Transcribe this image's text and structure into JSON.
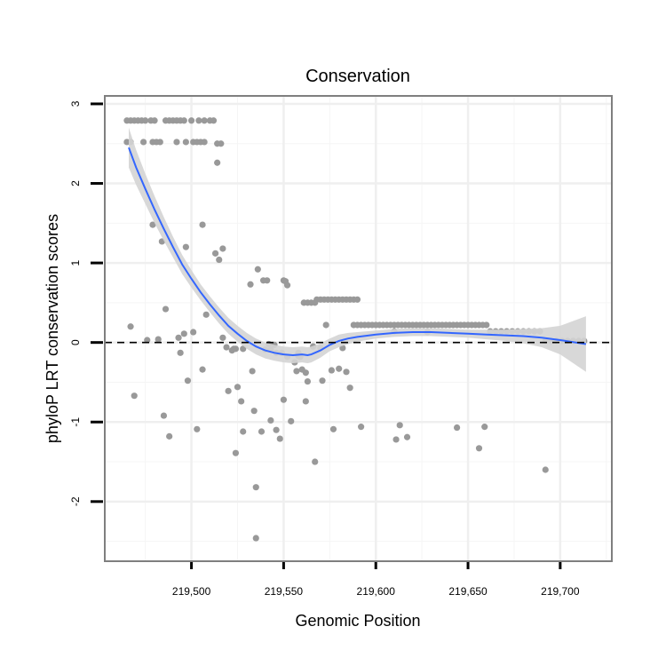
{
  "chart_data": {
    "type": "scatter",
    "title": "Conservation",
    "xlabel": "Genomic Position",
    "ylabel": "phyloP LRT conservation scores",
    "xlim": [
      219453,
      219728
    ],
    "ylim": [
      -2.75,
      3.1
    ],
    "xticks": [
      219500,
      219550,
      219600,
      219650,
      219700
    ],
    "xtick_labels": [
      "219,500",
      "219,550",
      "219,600",
      "219,650",
      "219,700"
    ],
    "yticks": [
      -2,
      -1,
      0,
      1,
      2,
      3
    ],
    "ytick_labels": [
      "-2",
      "-1",
      "0",
      "1",
      "2",
      "3"
    ],
    "minor_x_gridlines": [
      219475,
      219525,
      219575,
      219625,
      219675,
      219725
    ],
    "minor_y_gridlines": [
      -2.5,
      -1.5,
      -0.5,
      0.5,
      1.5,
      2.5
    ],
    "grid": true,
    "reference_line": {
      "y": 0,
      "style": "dashed",
      "color": "#000000"
    },
    "points_color": "#999999",
    "smooth_color": "#3366ff",
    "band_color": "#d4d4d4",
    "series": [
      {
        "name": "scores",
        "points": [
          [
            219465,
            2.79
          ],
          [
            219467,
            2.79
          ],
          [
            219469,
            2.79
          ],
          [
            219471,
            2.79
          ],
          [
            219473,
            2.79
          ],
          [
            219475,
            2.79
          ],
          [
            219478,
            2.79
          ],
          [
            219480,
            2.79
          ],
          [
            219486,
            2.79
          ],
          [
            219488,
            2.79
          ],
          [
            219490,
            2.79
          ],
          [
            219492,
            2.79
          ],
          [
            219494,
            2.79
          ],
          [
            219496,
            2.79
          ],
          [
            219500,
            2.79
          ],
          [
            219504,
            2.79
          ],
          [
            219507,
            2.79
          ],
          [
            219510,
            2.79
          ],
          [
            219512,
            2.79
          ],
          [
            219465,
            2.52
          ],
          [
            219467,
            2.52
          ],
          [
            219474,
            2.52
          ],
          [
            219479,
            2.52
          ],
          [
            219481,
            2.52
          ],
          [
            219483,
            2.52
          ],
          [
            219492,
            2.52
          ],
          [
            219497,
            2.52
          ],
          [
            219501,
            2.52
          ],
          [
            219503,
            2.52
          ],
          [
            219505,
            2.52
          ],
          [
            219507,
            2.52
          ],
          [
            219514,
            2.5
          ],
          [
            219516,
            2.5
          ],
          [
            219514,
            2.26
          ],
          [
            219479,
            1.48
          ],
          [
            219506,
            1.48
          ],
          [
            219484,
            1.27
          ],
          [
            219497,
            1.2
          ],
          [
            219517,
            1.18
          ],
          [
            219513,
            1.12
          ],
          [
            219515,
            1.04
          ],
          [
            219467,
            0.2
          ],
          [
            219469,
            -0.67
          ],
          [
            219476,
            0.03
          ],
          [
            219482,
            0.04
          ],
          [
            219486,
            0.42
          ],
          [
            219485,
            -0.92
          ],
          [
            219488,
            -1.18
          ],
          [
            219493,
            0.06
          ],
          [
            219494,
            -0.13
          ],
          [
            219496,
            0.11
          ],
          [
            219498,
            -0.48
          ],
          [
            219501,
            0.13
          ],
          [
            219503,
            -1.09
          ],
          [
            219506,
            -0.34
          ],
          [
            219508,
            0.35
          ],
          [
            219517,
            0.06
          ],
          [
            219519,
            -0.06
          ],
          [
            219520,
            -0.61
          ],
          [
            219522,
            -0.1
          ],
          [
            219523,
            -0.08
          ],
          [
            219524,
            -0.08
          ],
          [
            219524,
            -1.39
          ],
          [
            219525,
            -0.56
          ],
          [
            219527,
            -0.74
          ],
          [
            219528,
            -1.12
          ],
          [
            219528,
            -0.08
          ],
          [
            219532,
            0.73
          ],
          [
            219533,
            -0.36
          ],
          [
            219534,
            -0.86
          ],
          [
            219535,
            -1.82
          ],
          [
            219535,
            -2.46
          ],
          [
            219536,
            0.92
          ],
          [
            219538,
            -1.12
          ],
          [
            219539,
            0.78
          ],
          [
            219541,
            0.78
          ],
          [
            219540,
            -0.09
          ],
          [
            219542,
            -0.02
          ],
          [
            219543,
            -0.09
          ],
          [
            219543,
            -0.98
          ],
          [
            219545,
            -0.03
          ],
          [
            219546,
            -0.13
          ],
          [
            219546,
            -1.1
          ],
          [
            219548,
            -1.21
          ],
          [
            219550,
            0.78
          ],
          [
            219551,
            0.77
          ],
          [
            219552,
            0.72
          ],
          [
            219549,
            -0.13
          ],
          [
            219550,
            -0.72
          ],
          [
            219552,
            -0.18
          ],
          [
            219554,
            -0.99
          ],
          [
            219556,
            -0.25
          ],
          [
            219557,
            -0.36
          ],
          [
            219558,
            -0.13
          ],
          [
            219558,
            -0.17
          ],
          [
            219559,
            -0.18
          ],
          [
            219560,
            -0.34
          ],
          [
            219562,
            -0.38
          ],
          [
            219561,
            0.5
          ],
          [
            219563,
            0.5
          ],
          [
            219565,
            0.5
          ],
          [
            219567,
            0.5
          ],
          [
            219568,
            0.54
          ],
          [
            219570,
            0.54
          ],
          [
            219572,
            0.54
          ],
          [
            219574,
            0.54
          ],
          [
            219576,
            0.54
          ],
          [
            219578,
            0.54
          ],
          [
            219580,
            0.54
          ],
          [
            219582,
            0.54
          ],
          [
            219584,
            0.54
          ],
          [
            219586,
            0.54
          ],
          [
            219588,
            0.54
          ],
          [
            219590,
            0.54
          ],
          [
            219562,
            -0.74
          ],
          [
            219563,
            -0.49
          ],
          [
            219566,
            -0.05
          ],
          [
            219567,
            -1.5
          ],
          [
            219570,
            -0.07
          ],
          [
            219571,
            -0.48
          ],
          [
            219573,
            0.22
          ],
          [
            219576,
            -0.35
          ],
          [
            219577,
            -1.09
          ],
          [
            219580,
            -0.33
          ],
          [
            219582,
            -0.07
          ],
          [
            219584,
            -0.37
          ],
          [
            219586,
            -0.57
          ],
          [
            219588,
            0.22
          ],
          [
            219590,
            0.22
          ],
          [
            219592,
            0.22
          ],
          [
            219594,
            0.22
          ],
          [
            219596,
            0.22
          ],
          [
            219598,
            0.22
          ],
          [
            219600,
            0.22
          ],
          [
            219602,
            0.22
          ],
          [
            219604,
            0.22
          ],
          [
            219606,
            0.22
          ],
          [
            219608,
            0.22
          ],
          [
            219610,
            0.22
          ],
          [
            219612,
            0.22
          ],
          [
            219614,
            0.22
          ],
          [
            219616,
            0.22
          ],
          [
            219618,
            0.22
          ],
          [
            219620,
            0.22
          ],
          [
            219622,
            0.22
          ],
          [
            219624,
            0.22
          ],
          [
            219626,
            0.22
          ],
          [
            219628,
            0.22
          ],
          [
            219630,
            0.22
          ],
          [
            219632,
            0.22
          ],
          [
            219634,
            0.22
          ],
          [
            219636,
            0.22
          ],
          [
            219638,
            0.22
          ],
          [
            219640,
            0.22
          ],
          [
            219642,
            0.22
          ],
          [
            219644,
            0.22
          ],
          [
            219646,
            0.22
          ],
          [
            219648,
            0.22
          ],
          [
            219650,
            0.22
          ],
          [
            219652,
            0.22
          ],
          [
            219654,
            0.22
          ],
          [
            219656,
            0.22
          ],
          [
            219658,
            0.22
          ],
          [
            219660,
            0.22
          ],
          [
            219592,
            -1.06
          ],
          [
            219610,
            0.14
          ],
          [
            219611,
            -1.22
          ],
          [
            219613,
            -1.04
          ],
          [
            219617,
            -1.19
          ],
          [
            219628,
            0.13
          ],
          [
            219644,
            -1.07
          ],
          [
            219656,
            -1.33
          ],
          [
            219659,
            -1.06
          ],
          [
            219662,
            0.14
          ],
          [
            219665,
            0.14
          ],
          [
            219668,
            0.14
          ],
          [
            219671,
            0.14
          ],
          [
            219674,
            0.14
          ],
          [
            219677,
            0.14
          ],
          [
            219680,
            0.14
          ],
          [
            219683,
            0.14
          ],
          [
            219686,
            0.14
          ],
          [
            219689,
            0.14
          ],
          [
            219692,
            0.02
          ],
          [
            219695,
            0.02
          ],
          [
            219698,
            0.02
          ],
          [
            219701,
            0.02
          ],
          [
            219704,
            0.02
          ],
          [
            219707,
            0.02
          ],
          [
            219710,
            0.02
          ],
          [
            219713,
            0.02
          ],
          [
            219692,
            -1.6
          ]
        ]
      }
    ],
    "smooth": {
      "method": "loess",
      "x": [
        219466,
        219470,
        219475,
        219480,
        219485,
        219490,
        219495,
        219500,
        219505,
        219510,
        219515,
        219520,
        219525,
        219530,
        219535,
        219540,
        219545,
        219550,
        219555,
        219560,
        219563,
        219565,
        219570,
        219575,
        219580,
        219585,
        219590,
        219600,
        219610,
        219620,
        219630,
        219640,
        219650,
        219660,
        219670,
        219680,
        219690,
        219700,
        219714
      ],
      "y": [
        2.45,
        2.2,
        1.93,
        1.67,
        1.43,
        1.2,
        0.98,
        0.8,
        0.63,
        0.48,
        0.34,
        0.21,
        0.11,
        0.02,
        -0.05,
        -0.1,
        -0.13,
        -0.15,
        -0.16,
        -0.15,
        -0.16,
        -0.15,
        -0.1,
        -0.03,
        0.02,
        0.05,
        0.07,
        0.1,
        0.12,
        0.13,
        0.13,
        0.12,
        0.11,
        0.1,
        0.09,
        0.08,
        0.06,
        0.03,
        -0.02
      ],
      "se": [
        0.25,
        0.22,
        0.19,
        0.17,
        0.15,
        0.13,
        0.12,
        0.11,
        0.1,
        0.1,
        0.1,
        0.1,
        0.1,
        0.1,
        0.1,
        0.1,
        0.1,
        0.1,
        0.1,
        0.1,
        0.1,
        0.1,
        0.09,
        0.08,
        0.08,
        0.07,
        0.06,
        0.05,
        0.05,
        0.05,
        0.05,
        0.05,
        0.05,
        0.06,
        0.07,
        0.09,
        0.12,
        0.18,
        0.35
      ]
    }
  }
}
